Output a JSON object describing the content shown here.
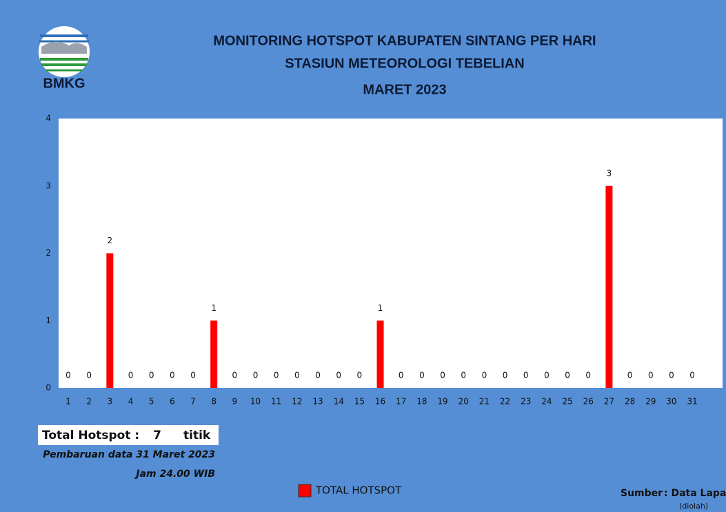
{
  "logo_text": "BMKG",
  "chart_data": {
    "type": "bar",
    "title": "MONITORING HOTSPOT KABUPATEN SINTANG PER HARI",
    "subtitle": "STASIUN METEOROLOGI TEBELIAN",
    "period": "MARET 2023",
    "categories": [
      "1",
      "2",
      "3",
      "4",
      "5",
      "6",
      "7",
      "8",
      "9",
      "10",
      "11",
      "12",
      "13",
      "14",
      "15",
      "16",
      "17",
      "18",
      "19",
      "20",
      "21",
      "22",
      "23",
      "24",
      "25",
      "26",
      "27",
      "28",
      "29",
      "30",
      "31"
    ],
    "series": [
      {
        "name": "TOTAL HOTSPOT",
        "color": "#ff0000",
        "values": [
          0,
          0,
          2,
          0,
          0,
          0,
          0,
          1,
          0,
          0,
          0,
          0,
          0,
          0,
          0,
          1,
          0,
          0,
          0,
          0,
          0,
          0,
          0,
          0,
          0,
          0,
          3,
          0,
          0,
          0,
          0
        ]
      }
    ],
    "ylim": [
      0,
      4
    ],
    "yticks": [
      0,
      1,
      2,
      3,
      4
    ],
    "grid": false,
    "data_labels": true
  },
  "summary": {
    "label": "Total Hotspot :",
    "total": 7,
    "unit": "titik",
    "update": "Pembaruan data 31 Maret 2023",
    "time": "Jam 24.00 WIB"
  },
  "source": {
    "label": "Sumber",
    "value": ": Data Lapan",
    "note": "(diolah)"
  }
}
